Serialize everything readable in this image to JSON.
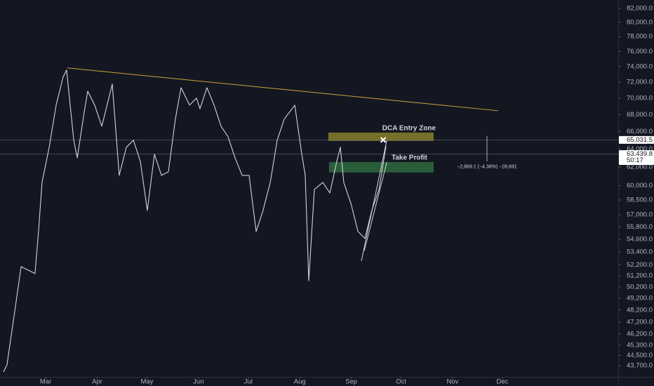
{
  "chart_data": {
    "type": "line",
    "log": true,
    "color": "#d1d4dc",
    "x": [
      3.6,
      5.7,
      10.0,
      14.2,
      18.4,
      22.6,
      24.7,
      26.8,
      31.1,
      35.3,
      39.5,
      41.6,
      45.9,
      48.0,
      52.2,
      54.3,
      58.5,
      62.8,
      69.1,
      73.3,
      77.6,
      81.8,
      86.0,
      90.2,
      94.5,
      98.7,
      102.9,
      107.1,
      110.5,
      115.6,
      119.8,
      121.9,
      126.1,
      130.4,
      134.6,
      138.8,
      143.0,
      147.3,
      151.5,
      155.7,
      159.9,
      164.2,
      168.4,
      172.6,
      179.0,
      183.2,
      185.3,
      187.4,
      190.8,
      195.9,
      200.1,
      204.3,
      206.4,
      208.5,
      212.8,
      217.0,
      221.2,
      225.4,
      229.7,
      233.9
    ],
    "values": [
      43220,
      43760,
      47720,
      52030,
      51710,
      51400,
      55350,
      60350,
      64200,
      69140,
      72640,
      73550,
      65000,
      63020,
      68290,
      70860,
      69140,
      66620,
      71750,
      61100,
      64200,
      65000,
      62630,
      57440,
      63410,
      61100,
      61480,
      67450,
      71300,
      69140,
      70000,
      68710,
      71300,
      69140,
      66620,
      65400,
      63020,
      61100,
      61100,
      55350,
      57440,
      60350,
      65000,
      67450,
      69140,
      63410,
      61100,
      50760,
      59610,
      60350,
      59240,
      62630,
      64200,
      60350,
      58150,
      55350,
      54670,
      57440,
      59610,
      64350
    ],
    "xlim": [
      1.5,
      373.3
    ],
    "ylim": [
      42850,
      83200
    ],
    "xticks": [
      {
        "value": 29,
        "label": "Mar"
      },
      {
        "value": 60,
        "label": "Apr"
      },
      {
        "value": 90,
        "label": "May"
      },
      {
        "value": 121,
        "label": "Jun"
      },
      {
        "value": 151,
        "label": "Jul"
      },
      {
        "value": 182,
        "label": "Aug"
      },
      {
        "value": 213,
        "label": "Sep"
      },
      {
        "value": 243,
        "label": "Oct"
      },
      {
        "value": 274,
        "label": "Nov"
      },
      {
        "value": 304,
        "label": "Dec"
      }
    ],
    "yticks": [
      {
        "value": 82000,
        "label": "82,000.0"
      },
      {
        "value": 80000,
        "label": "80,000.0"
      },
      {
        "value": 78000,
        "label": "78,000.0"
      },
      {
        "value": 76000,
        "label": "76,000.0"
      },
      {
        "value": 74000,
        "label": "74,000.0"
      },
      {
        "value": 72000,
        "label": "72,000.0"
      },
      {
        "value": 70000,
        "label": "70,000.0"
      },
      {
        "value": 68000,
        "label": "68,000.0"
      },
      {
        "value": 66000,
        "label": "66,000.0"
      },
      {
        "value": 64000,
        "label": "64,000.0"
      },
      {
        "value": 62000,
        "label": "62,000.0"
      },
      {
        "value": 60000,
        "label": "60,000.0"
      },
      {
        "value": 58500,
        "label": "58,500.0"
      },
      {
        "value": 57000,
        "label": "57,000.0"
      },
      {
        "value": 55800,
        "label": "55,800.0"
      },
      {
        "value": 54600,
        "label": "54,600.0"
      },
      {
        "value": 53400,
        "label": "53,400.0"
      },
      {
        "value": 52200,
        "label": "52,200.0"
      },
      {
        "value": 51200,
        "label": "51,200.0"
      },
      {
        "value": 50200,
        "label": "50,200.0"
      },
      {
        "value": 49200,
        "label": "49,200.0"
      },
      {
        "value": 48200,
        "label": "48,200.0"
      },
      {
        "value": 47200,
        "label": "47,200.0"
      },
      {
        "value": 46200,
        "label": "46,200.0"
      },
      {
        "value": 45300,
        "label": "45,300.0"
      },
      {
        "value": 44500,
        "label": "44,500.0"
      },
      {
        "value": 43700,
        "label": "43,700.0"
      }
    ],
    "trendline": {
      "color": "#c9a23a",
      "x": [
        42.1,
        301.5
      ],
      "values": [
        73820,
        68460
      ]
    },
    "wedge": [
      {
        "x": [
          219.1,
          234.4
        ],
        "values": [
          52550,
          65000
        ]
      },
      {
        "x": [
          220.8,
          234.4
        ],
        "values": [
          53500,
          62500
        ]
      }
    ],
    "zones": [
      {
        "label": "DCA Entry Zone",
        "color": "#8a7f2a",
        "x": [
          199.2,
          262.6
        ],
        "values": [
          64920,
          65880
        ]
      },
      {
        "label": "Take Profit",
        "color": "#2f6a3d",
        "x": [
          199.6,
          262.6
        ],
        "values": [
          61410,
          62550
        ]
      }
    ],
    "marker": {
      "x": 232.2,
      "value": 65031.5
    },
    "price_lines": [
      {
        "value": 65031.5,
        "label": "65,031.5"
      },
      {
        "value": 63439.8,
        "label": "63,439.8",
        "countdown": "50:17"
      }
    ],
    "measure": {
      "x": 294.7,
      "values": [
        65500,
        62630.9
      ],
      "label": "−2,869.1 (−4.38%) −28,691"
    }
  }
}
